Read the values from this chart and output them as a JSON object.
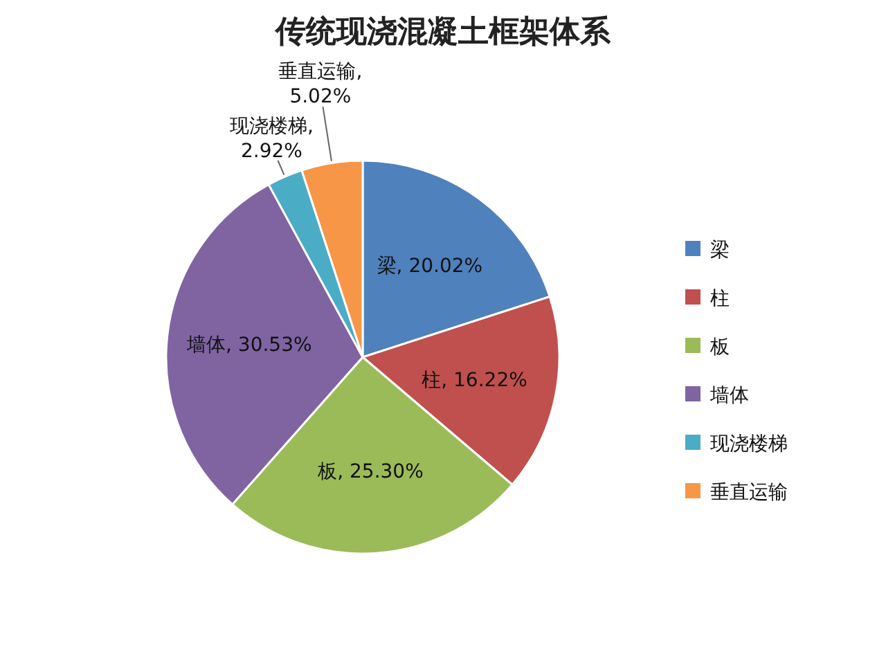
{
  "chart_data": {
    "type": "pie",
    "title": "传统现浇混凝土框架体系",
    "categories": [
      "梁",
      "柱",
      "板",
      "墙体",
      "现浇楼梯",
      "垂直运输"
    ],
    "values": [
      20.02,
      16.22,
      25.3,
      30.53,
      2.92,
      5.02
    ],
    "colors": [
      "#4f81bd",
      "#c0504d",
      "#9bbb59",
      "#8064a2",
      "#4bacc6",
      "#f79646"
    ],
    "value_labels": [
      "梁, 20.02%",
      "柱, 16.22%",
      "板, 25.30%",
      "墙体, 30.53%",
      "现浇楼梯, 2.92%",
      "垂直运输, 5.02%"
    ],
    "legend": "right"
  }
}
